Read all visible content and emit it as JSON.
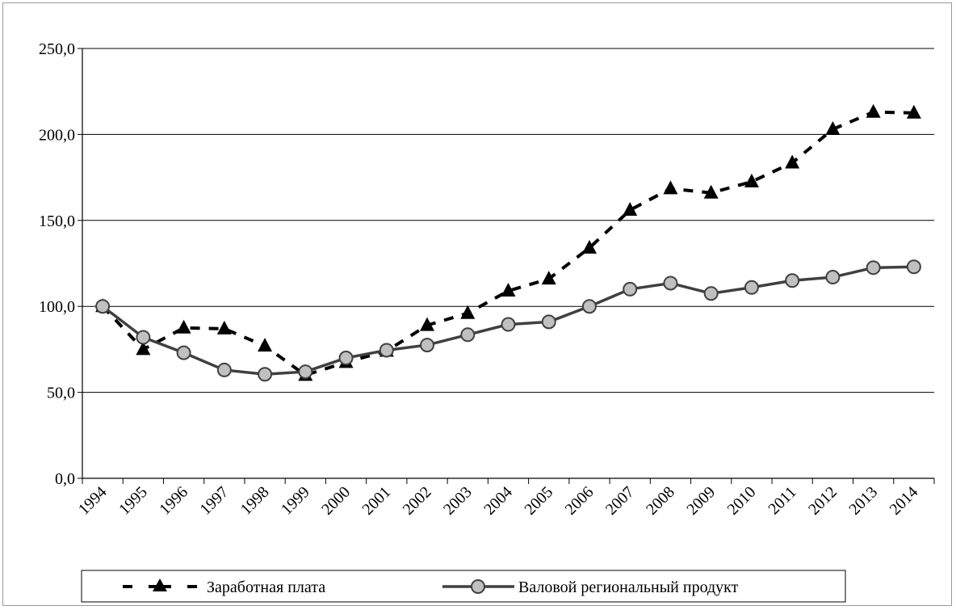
{
  "chart_data": {
    "type": "line",
    "categories": [
      "1994",
      "1995",
      "1996",
      "1997",
      "1998",
      "1999",
      "2000",
      "2001",
      "2002",
      "2003",
      "2004",
      "2005",
      "2006",
      "2007",
      "2008",
      "2009",
      "2010",
      "2011",
      "2012",
      "2013",
      "2014"
    ],
    "y_ticks": [
      "0,0",
      "50,0",
      "100,0",
      "150,0",
      "200,0",
      "250,0"
    ],
    "ylim": [
      0,
      250
    ],
    "grid": true,
    "legend_position": "bottom",
    "series": [
      {
        "name": "Заработная плата",
        "color": "#000000",
        "style": "dashed",
        "marker": "triangle",
        "values": [
          100,
          75,
          87.5,
          87,
          77,
          60,
          67.5,
          74,
          89,
          96,
          109,
          116,
          134,
          156,
          168.5,
          166,
          172.5,
          183.5,
          203,
          213,
          212.5
        ]
      },
      {
        "name": "Валовой региональный продукт",
        "color": "#404040",
        "style": "solid",
        "marker": "circle",
        "values": [
          100,
          82,
          73,
          63,
          60.5,
          62,
          70,
          74.5,
          77.5,
          83.5,
          89.5,
          91,
          100,
          110,
          113.5,
          107.5,
          111,
          115,
          117,
          122.5,
          123
        ]
      }
    ]
  }
}
